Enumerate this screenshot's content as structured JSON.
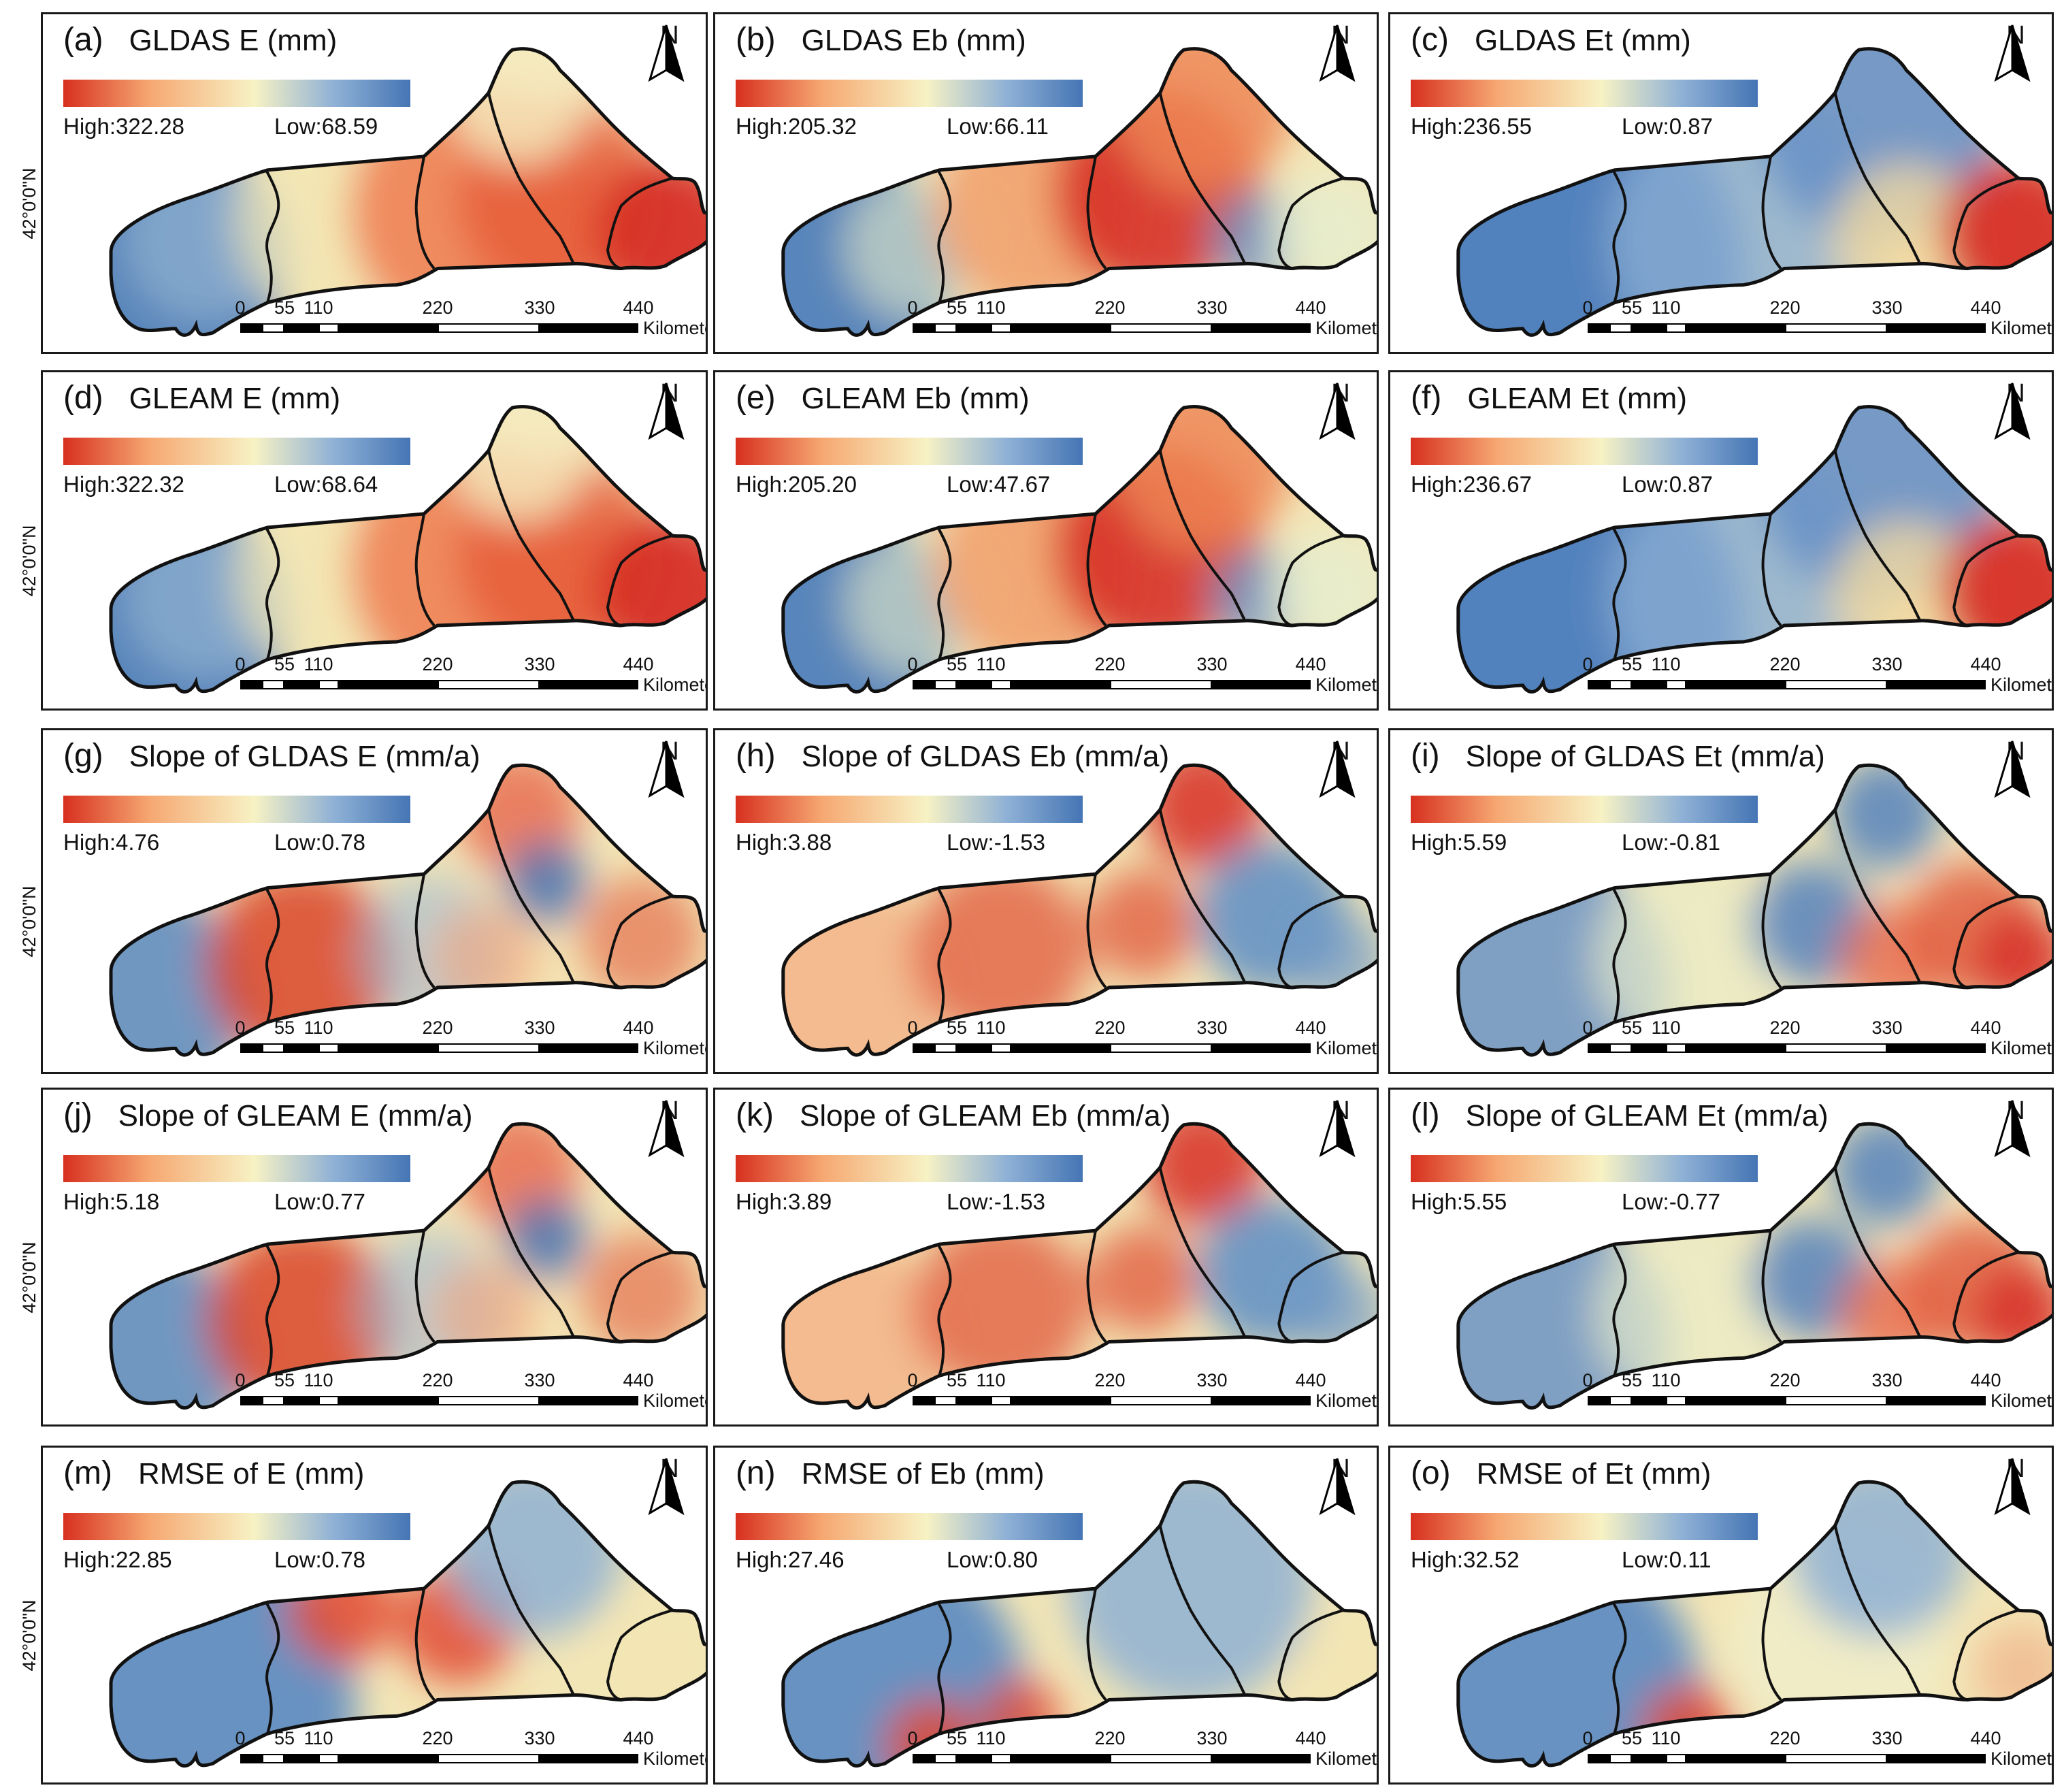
{
  "latitude_label": "42°0'0\"N",
  "scale": {
    "ticks": [
      "0",
      "55",
      "110",
      "220",
      "330",
      "440"
    ],
    "unit": "Kilometers"
  },
  "north_label": "N",
  "colors": {
    "high": "#d7301f",
    "mid": "#f7f2c4",
    "low": "#4575b4",
    "boundary": "#111111"
  },
  "panels": [
    {
      "letter": "(a)",
      "title": "GLDAS E (mm)",
      "high": "High:322.28",
      "low": "Low:68.59",
      "pattern": "gradient_east_hot"
    },
    {
      "letter": "(b)",
      "title": "GLDAS Eb (mm)",
      "high": "High:205.32",
      "low": "Low:66.11",
      "pattern": "center_hot"
    },
    {
      "letter": "(c)",
      "title": "GLDAS Et (mm)",
      "high": "High:236.55",
      "low": "Low:0.87",
      "pattern": "east_hot_only"
    },
    {
      "letter": "(d)",
      "title": "GLEAM E (mm)",
      "high": "High:322.32",
      "low": "Low:68.64",
      "pattern": "gradient_east_hot"
    },
    {
      "letter": "(e)",
      "title": "GLEAM Eb (mm)",
      "high": "High:205.20",
      "low": "Low:47.67",
      "pattern": "center_hot"
    },
    {
      "letter": "(f)",
      "title": "GLEAM Et (mm)",
      "high": "High:236.67",
      "low": "Low:0.87",
      "pattern": "east_hot_only"
    },
    {
      "letter": "(g)",
      "title": "Slope of GLDAS E (mm/a)",
      "high": "High:4.76",
      "low": "Low:0.78",
      "pattern": "slope_e"
    },
    {
      "letter": "(h)",
      "title": "Slope of GLDAS Eb (mm/a)",
      "high": "High:3.88",
      "low": "Low:-1.53",
      "pattern": "slope_eb"
    },
    {
      "letter": "(i)",
      "title": "Slope of GLDAS Et (mm/a)",
      "high": "High:5.59",
      "low": "Low:-0.81",
      "pattern": "slope_et"
    },
    {
      "letter": "(j)",
      "title": "Slope of GLEAM E (mm/a)",
      "high": "High:5.18",
      "low": "Low:0.77",
      "pattern": "slope_e"
    },
    {
      "letter": "(k)",
      "title": "Slope of GLEAM Eb (mm/a)",
      "high": "High:3.89",
      "low": "Low:-1.53",
      "pattern": "slope_eb"
    },
    {
      "letter": "(l)",
      "title": "Slope of GLEAM Et (mm/a)",
      "high": "High:5.55",
      "low": "Low:-0.77",
      "pattern": "slope_et"
    },
    {
      "letter": "(m)",
      "title": "RMSE of E (mm)",
      "high": "High:22.85",
      "low": "Low:0.78",
      "pattern": "rmse_e"
    },
    {
      "letter": "(n)",
      "title": "RMSE of Eb (mm)",
      "high": "High:27.46",
      "low": "Low:0.80",
      "pattern": "rmse_eb"
    },
    {
      "letter": "(o)",
      "title": "RMSE of Et (mm)",
      "high": "High:32.52",
      "low": "Low:0.11",
      "pattern": "rmse_et"
    }
  ]
}
